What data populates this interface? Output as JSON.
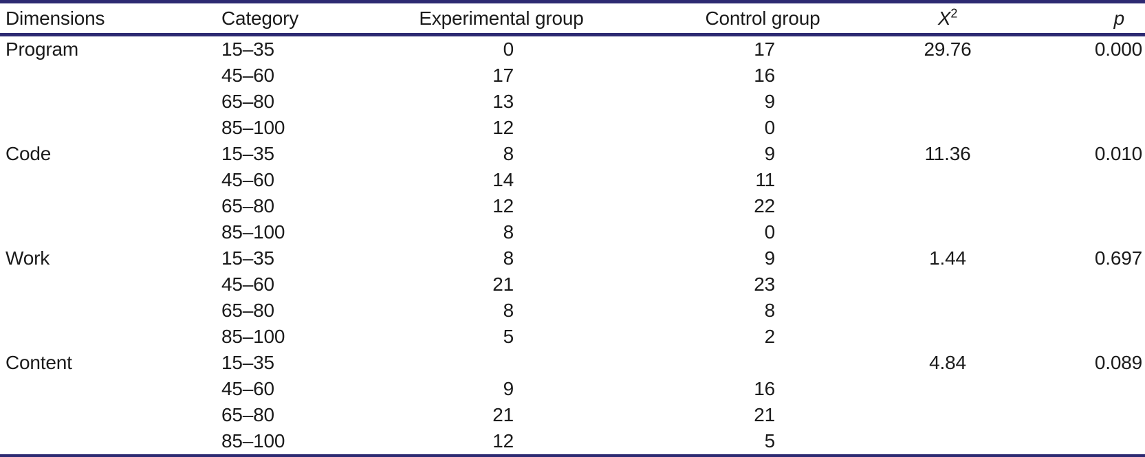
{
  "table": {
    "headers": {
      "dimensions": "Dimensions",
      "category": "Category",
      "experimental": "Experimental group",
      "control": "Control group",
      "chi_base": "X",
      "chi_sup": "2",
      "p": "p"
    },
    "sections": [
      {
        "dimension": "Program",
        "chi_square": "29.76",
        "p": "0.000",
        "rows": [
          {
            "category": "15–35",
            "experimental": "0",
            "control": "17"
          },
          {
            "category": "45–60",
            "experimental": "17",
            "control": "16"
          },
          {
            "category": "65–80",
            "experimental": "13",
            "control": "9"
          },
          {
            "category": "85–100",
            "experimental": "12",
            "control": "0"
          }
        ]
      },
      {
        "dimension": "Code",
        "chi_square": "11.36",
        "p": "0.010",
        "rows": [
          {
            "category": "15–35",
            "experimental": "8",
            "control": "9"
          },
          {
            "category": "45–60",
            "experimental": "14",
            "control": "11"
          },
          {
            "category": "65–80",
            "experimental": "12",
            "control": "22"
          },
          {
            "category": "85–100",
            "experimental": "8",
            "control": "0"
          }
        ]
      },
      {
        "dimension": "Work",
        "chi_square": "1.44",
        "p": "0.697",
        "rows": [
          {
            "category": "15–35",
            "experimental": "8",
            "control": "9"
          },
          {
            "category": "45–60",
            "experimental": "21",
            "control": "23"
          },
          {
            "category": "65–80",
            "experimental": "8",
            "control": "8"
          },
          {
            "category": "85–100",
            "experimental": "5",
            "control": "2"
          }
        ]
      },
      {
        "dimension": "Content",
        "chi_square": "4.84",
        "p": "0.089",
        "rows": [
          {
            "category": "15–35",
            "experimental": "",
            "control": ""
          },
          {
            "category": "45–60",
            "experimental": "9",
            "control": "16"
          },
          {
            "category": "65–80",
            "experimental": "21",
            "control": "21"
          },
          {
            "category": "85–100",
            "experimental": "12",
            "control": "5"
          }
        ]
      }
    ],
    "colors": {
      "rule": "#2d2a72",
      "text": "#1b1b1b"
    }
  },
  "chart_data": {
    "type": "table",
    "columns": [
      "Dimensions",
      "Category",
      "Experimental group",
      "Control group",
      "X2",
      "p"
    ],
    "rows": [
      [
        "Program",
        "15–35",
        "0",
        "17",
        "29.76",
        "0.000"
      ],
      [
        "",
        "45–60",
        "17",
        "16",
        "",
        ""
      ],
      [
        "",
        "65–80",
        "13",
        "9",
        "",
        ""
      ],
      [
        "",
        "85–100",
        "12",
        "0",
        "",
        ""
      ],
      [
        "Code",
        "15–35",
        "8",
        "9",
        "11.36",
        "0.010"
      ],
      [
        "",
        "45–60",
        "14",
        "11",
        "",
        ""
      ],
      [
        "",
        "65–80",
        "12",
        "22",
        "",
        ""
      ],
      [
        "",
        "85–100",
        "8",
        "0",
        "",
        ""
      ],
      [
        "Work",
        "15–35",
        "8",
        "9",
        "1.44",
        "0.697"
      ],
      [
        "",
        "45–60",
        "21",
        "23",
        "",
        ""
      ],
      [
        "",
        "65–80",
        "8",
        "8",
        "",
        ""
      ],
      [
        "",
        "85–100",
        "5",
        "2",
        "",
        ""
      ],
      [
        "Content",
        "15–35",
        "",
        "",
        "4.84",
        "0.089"
      ],
      [
        "",
        "45–60",
        "9",
        "16",
        "",
        ""
      ],
      [
        "",
        "65–80",
        "21",
        "21",
        "",
        ""
      ],
      [
        "",
        "85–100",
        "12",
        "5",
        "",
        ""
      ]
    ]
  }
}
